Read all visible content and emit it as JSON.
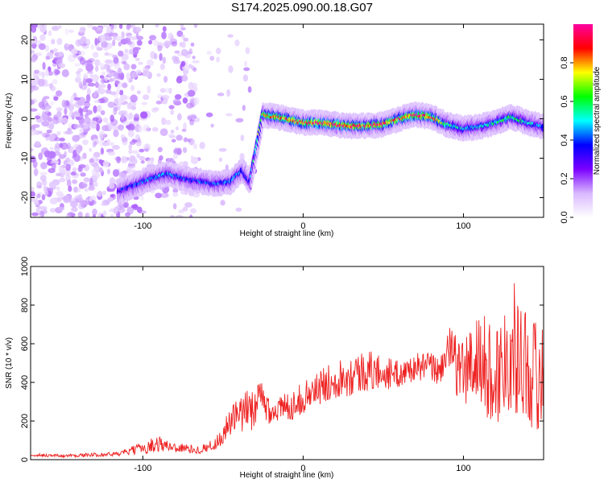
{
  "title": "S174.2025.090.00.18.G07",
  "chart_data": [
    {
      "type": "heatmap",
      "xlabel": "Height of straight line (km)",
      "ylabel": "Frequency (Hz)",
      "xlim": [
        -170,
        150
      ],
      "ylim": [
        -25,
        24
      ],
      "xticks": [
        -100,
        0,
        100
      ],
      "yticks": [
        -20,
        -10,
        0,
        10,
        20
      ],
      "xtick_labels": [
        "-100",
        "0",
        "100"
      ],
      "ytick_labels": [
        "-20",
        "-10",
        "0",
        "10",
        "20"
      ],
      "colorbar": {
        "label": "Normalized spectral amplitude",
        "range": [
          0,
          1
        ],
        "ticks": [
          0.0,
          0.2,
          0.4,
          0.6,
          0.8
        ],
        "tick_labels": [
          "0.0",
          "0.2",
          "0.4",
          "0.6",
          "0.8"
        ],
        "colors": [
          "#ffffff",
          "#d9b8ff",
          "#7a00ff",
          "#0000ff",
          "#00ffff",
          "#00ff00",
          "#ffff00",
          "#ff0000",
          "#ff00a0"
        ]
      },
      "ridge": {
        "x": [
          -115,
          -100,
          -85,
          -70,
          -55,
          -45,
          -38,
          -33,
          -25,
          -10,
          0,
          10,
          20,
          30,
          40,
          50,
          60,
          70,
          80,
          90,
          100,
          110,
          120,
          130,
          140,
          150
        ],
        "y": [
          -18.5,
          -16,
          -14,
          -15.5,
          -16.5,
          -16,
          -13,
          -16,
          1,
          0,
          -1,
          -1,
          -1.5,
          -1.8,
          -1.8,
          -1.5,
          0,
          1,
          0.5,
          -1.5,
          -2.5,
          -2,
          -1,
          0.5,
          -1,
          -2
        ],
        "peak_amplitude": [
          0.35,
          0.45,
          0.45,
          0.4,
          0.4,
          0.45,
          0.45,
          0.4,
          0.75,
          0.9,
          0.9,
          0.95,
          0.95,
          0.95,
          0.9,
          0.9,
          0.85,
          0.95,
          0.9,
          0.6,
          0.5,
          0.5,
          0.55,
          0.6,
          0.5,
          0.45
        ]
      }
    },
    {
      "type": "line",
      "xlabel": "Height of straight line (km)",
      "ylabel": "SNR (10 * v/v)",
      "xlim": [
        -170,
        150
      ],
      "ylim": [
        0,
        1000
      ],
      "xticks": [
        -100,
        0,
        100
      ],
      "yticks": [
        0,
        200,
        400,
        600,
        800,
        1000
      ],
      "xtick_labels": [
        "-100",
        "0",
        "100"
      ],
      "ytick_labels": [
        "0",
        "200",
        "400",
        "600",
        "800",
        "1000"
      ],
      "color": "#ee2222",
      "series": [
        {
          "x": [
            -170,
            -150,
            -130,
            -115,
            -100,
            -90,
            -85,
            -75,
            -65,
            -55,
            -50,
            -45,
            -40,
            -30,
            -25,
            -20,
            -10,
            0,
            10,
            20,
            30,
            40,
            50,
            60,
            70,
            80,
            85,
            90,
            95,
            100,
            110,
            120,
            130,
            140,
            150
          ],
          "y": [
            25,
            20,
            25,
            30,
            60,
            85,
            70,
            60,
            50,
            80,
            130,
            200,
            220,
            280,
            300,
            250,
            270,
            320,
            370,
            420,
            440,
            460,
            450,
            440,
            480,
            480,
            450,
            580,
            500,
            450,
            520,
            420,
            600,
            480,
            400
          ],
          "spread": [
            8,
            8,
            10,
            12,
            30,
            45,
            30,
            25,
            20,
            30,
            60,
            80,
            100,
            120,
            130,
            60,
            80,
            80,
            90,
            100,
            110,
            110,
            90,
            70,
            70,
            80,
            70,
            120,
            150,
            200,
            250,
            280,
            340,
            300,
            300
          ]
        }
      ]
    }
  ]
}
